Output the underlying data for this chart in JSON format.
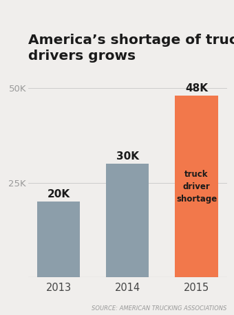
{
  "title_line1": "America’s shortage of trucker",
  "title_line2": "drivers grows",
  "categories": [
    "2013",
    "2014",
    "2015"
  ],
  "values": [
    20000,
    30000,
    48000
  ],
  "bar_colors": [
    "#8c9eaa",
    "#8c9eaa",
    "#f2784b"
  ],
  "bar_labels": [
    "20K",
    "30K",
    "48K"
  ],
  "annotation_2015": "truck\ndriver\nshortage",
  "source": "SOURCE: AMERICAN TRUCKING ASSOCIATIONS",
  "yticks": [
    25000,
    50000
  ],
  "ytick_labels": [
    "25K",
    "50K"
  ],
  "ylim": [
    0,
    55000
  ],
  "background_color": "#f0eeec",
  "title_fontsize": 14.5,
  "bar_label_fontsize": 11,
  "axis_label_fontsize": 9.5,
  "annotation_fontsize": 8.5,
  "source_fontsize": 6.0,
  "bar_width": 0.62
}
